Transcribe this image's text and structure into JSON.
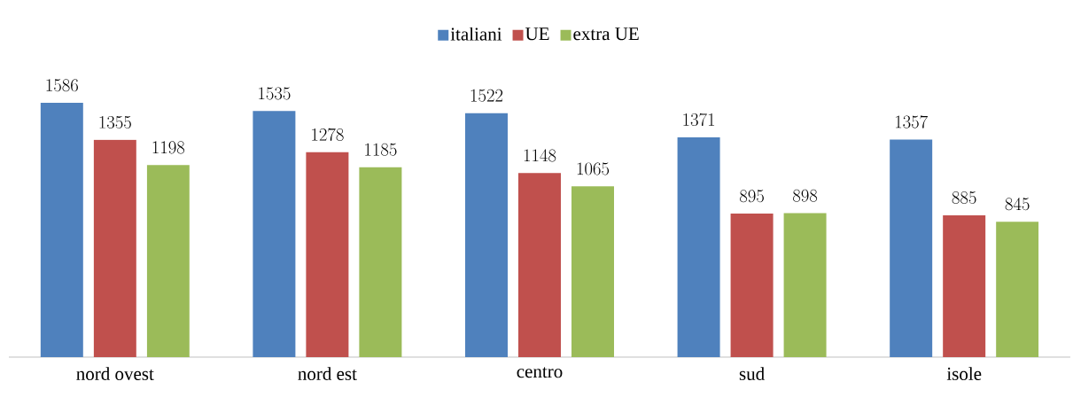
{
  "chart_data": {
    "type": "bar",
    "categories": [
      "nord ovest",
      "nord est",
      "centro",
      "sud",
      "isole"
    ],
    "series": [
      {
        "name": "italiani",
        "color": "#4f81bd",
        "values": [
          1586,
          1535,
          1522,
          1371,
          1357
        ]
      },
      {
        "name": "UE",
        "color": "#c0504d",
        "values": [
          1355,
          1278,
          1148,
          895,
          885
        ]
      },
      {
        "name": "extra UE",
        "color": "#9bbb59",
        "values": [
          1198,
          1185,
          1065,
          898,
          845
        ]
      }
    ],
    "data_labels": true,
    "legend": "top"
  }
}
